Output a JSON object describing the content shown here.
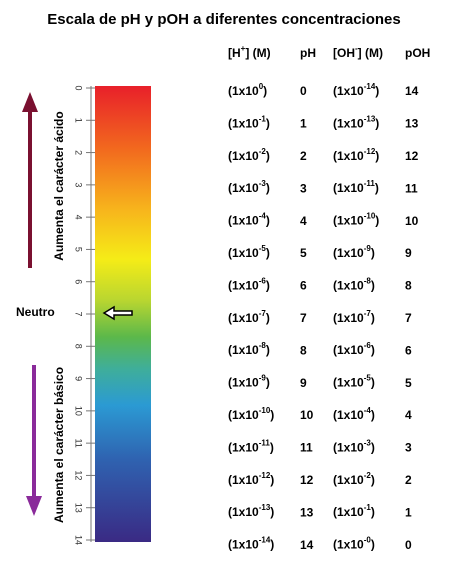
{
  "title": "Escala de pH y pOH a diferentes concentraciones",
  "headers": [
    [
      "[H",
      "+",
      "] (M)"
    ],
    [
      "pH"
    ],
    [
      "[OH",
      "-",
      "] (M)"
    ],
    [
      "pOH"
    ]
  ],
  "rows": [
    {
      "h": [
        "(1x10",
        "0",
        ")"
      ],
      "ph": 0,
      "oh": [
        "(1x10",
        "-14",
        ")"
      ],
      "poh": 14
    },
    {
      "h": [
        "(1x10",
        "-1",
        ")"
      ],
      "ph": 1,
      "oh": [
        "(1x10",
        "-13",
        ")"
      ],
      "poh": 13
    },
    {
      "h": [
        "(1x10",
        "-2",
        ")"
      ],
      "ph": 2,
      "oh": [
        "(1x10",
        "-12",
        ")"
      ],
      "poh": 12
    },
    {
      "h": [
        "(1x10",
        "-3",
        ")"
      ],
      "ph": 3,
      "oh": [
        "(1x10",
        "-11",
        ")"
      ],
      "poh": 11
    },
    {
      "h": [
        "(1x10",
        "-4",
        ")"
      ],
      "ph": 4,
      "oh": [
        "(1x10",
        "-10",
        ")"
      ],
      "poh": 10
    },
    {
      "h": [
        "(1x10",
        "-5",
        ")"
      ],
      "ph": 5,
      "oh": [
        "(1x10",
        "-9",
        ")"
      ],
      "poh": 9
    },
    {
      "h": [
        "(1x10",
        "-6",
        ")"
      ],
      "ph": 6,
      "oh": [
        "(1x10",
        "-8",
        ")"
      ],
      "poh": 8
    },
    {
      "h": [
        "(1x10",
        "-7",
        ")"
      ],
      "ph": 7,
      "oh": [
        "(1x10",
        "-7",
        ")"
      ],
      "poh": 7
    },
    {
      "h": [
        "(1x10",
        "-8",
        ")"
      ],
      "ph": 8,
      "oh": [
        "(1x10",
        "-6",
        ")"
      ],
      "poh": 6
    },
    {
      "h": [
        "(1x10",
        "-9",
        ")"
      ],
      "ph": 9,
      "oh": [
        "(1x10",
        "-5",
        ")"
      ],
      "poh": 5
    },
    {
      "h": [
        "(1x10",
        "-10",
        ")"
      ],
      "ph": 10,
      "oh": [
        "(1x10",
        "-4",
        ")"
      ],
      "poh": 4
    },
    {
      "h": [
        "(1x10",
        "-11",
        ")"
      ],
      "ph": 11,
      "oh": [
        "(1x10",
        "-3",
        ")"
      ],
      "poh": 3
    },
    {
      "h": [
        "(1x10",
        "-12",
        ")"
      ],
      "ph": 12,
      "oh": [
        "(1x10",
        "-2",
        ")"
      ],
      "poh": 2
    },
    {
      "h": [
        "(1x10",
        "-13",
        ")"
      ],
      "ph": 13,
      "oh": [
        "(1x10",
        "-1",
        ")"
      ],
      "poh": 1
    },
    {
      "h": [
        "(1x10",
        "-14",
        ")"
      ],
      "ph": 14,
      "oh": [
        "(1x10",
        "-0",
        ")"
      ],
      "poh": 0
    }
  ],
  "scale": [
    0,
    1,
    2,
    3,
    4,
    5,
    6,
    7,
    8,
    9,
    10,
    11,
    12,
    13,
    14
  ],
  "acid_label": "Aumenta el carácter ácido",
  "base_label": "Aumenta el carácter básico",
  "neutral_label": "Neutro"
}
